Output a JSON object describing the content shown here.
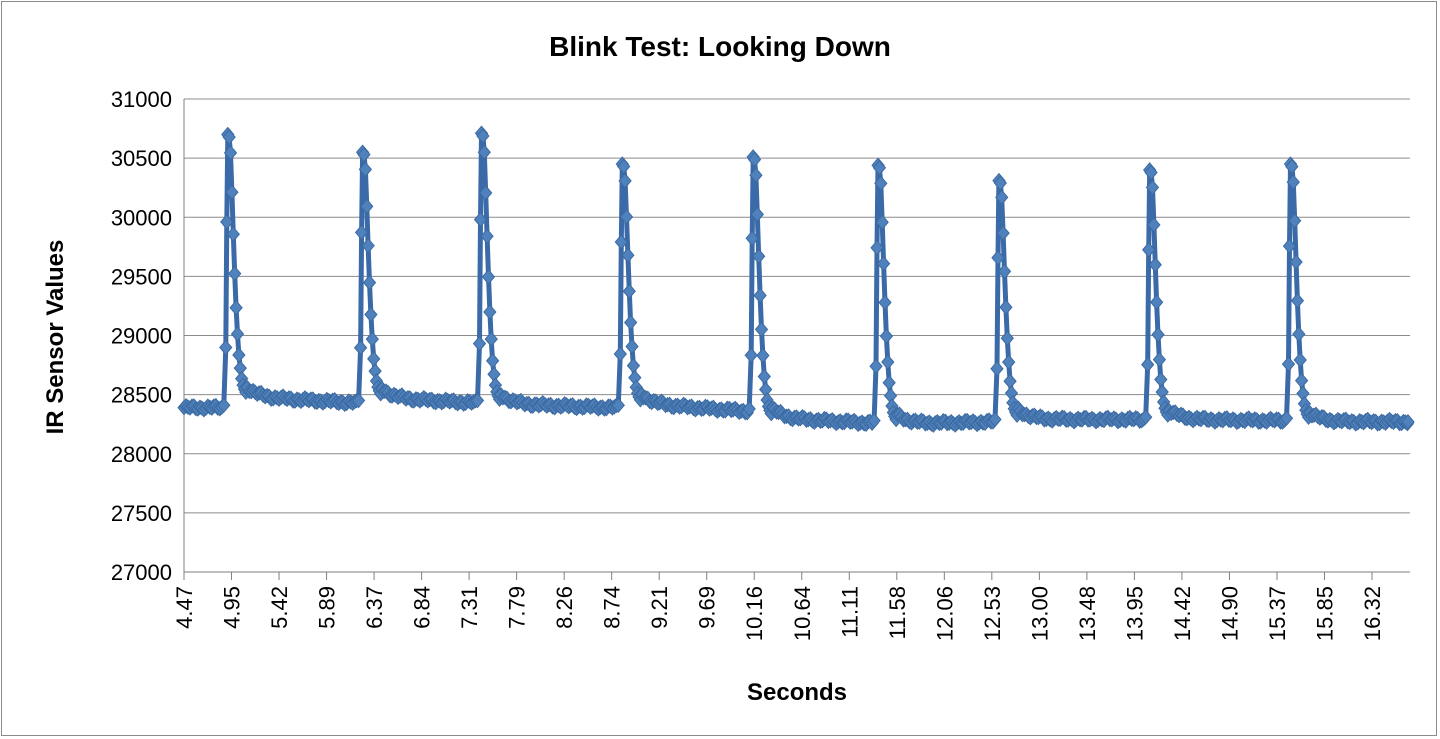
{
  "chart_data": {
    "type": "line",
    "title": "Blink Test: Looking Down",
    "xlabel": "Seconds",
    "ylabel": "IR Sensor Values",
    "ylim": [
      27000,
      31000
    ],
    "yticks": [
      27000,
      27500,
      28000,
      28500,
      29000,
      29500,
      30000,
      30500,
      31000
    ],
    "xticks": [
      "4.47",
      "4.95",
      "5.42",
      "5.89",
      "6.37",
      "6.84",
      "7.31",
      "7.79",
      "8.26",
      "8.74",
      "9.21",
      "9.69",
      "10.16",
      "10.64",
      "11.11",
      "11.58",
      "12.06",
      "12.53",
      "13.00",
      "13.48",
      "13.95",
      "14.42",
      "14.90",
      "15.37",
      "15.85",
      "16.32"
    ],
    "xlim": [
      4.47,
      16.8
    ],
    "grid": true,
    "legend": "none",
    "marker": "diamond",
    "color": "#4f81bd",
    "spikes": [
      {
        "t": 4.91,
        "peak": 30700,
        "before": 28390,
        "after": 28480
      },
      {
        "t": 6.28,
        "peak": 30550,
        "before": 28430,
        "after": 28470
      },
      {
        "t": 7.48,
        "peak": 30710,
        "before": 28430,
        "after": 28420
      },
      {
        "t": 8.88,
        "peak": 30450,
        "before": 28390,
        "after": 28420
      },
      {
        "t": 10.2,
        "peak": 30510,
        "before": 28360,
        "after": 28300
      },
      {
        "t": 11.45,
        "peak": 30440,
        "before": 28260,
        "after": 28250
      },
      {
        "t": 12.67,
        "peak": 30310,
        "before": 28270,
        "after": 28290
      },
      {
        "t": 14.2,
        "peak": 30400,
        "before": 28290,
        "after": 28290
      },
      {
        "t": 15.61,
        "peak": 30450,
        "before": 28280,
        "after": 28270
      }
    ],
    "start": {
      "t": 4.47,
      "value": 28390
    },
    "end": {
      "t": 16.78,
      "value": 28270
    }
  }
}
